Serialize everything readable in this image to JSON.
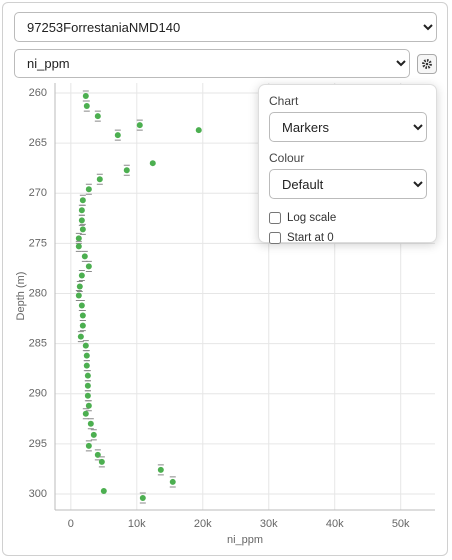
{
  "ui": {
    "well_select": "97253ForrestaniaNMD140",
    "column_select": "ni_ppm",
    "popup": {
      "chart_label": "Chart",
      "chart_value": "Markers",
      "colour_label": "Colour",
      "colour_value": "Default",
      "log_scale_label": "Log scale",
      "start_at_0_label": "Start at 0"
    }
  },
  "chart_data": {
    "type": "scatter",
    "x_label": "ni_ppm",
    "y_label": "Depth (m)",
    "x": [
      2270,
      2420,
      4090,
      10450,
      19390,
      7120,
      12420,
      8480,
      4390,
      2730,
      1820,
      1670,
      1670,
      1820,
      1210,
      1210,
      2120,
      2730,
      1670,
      1360,
      1210,
      1670,
      1820,
      1820,
      1520,
      2270,
      2420,
      2420,
      2580,
      2580,
      2580,
      2730,
      2270,
      3030,
      3480,
      2730,
      4090,
      4700,
      13640,
      15450,
      5000,
      10910
    ],
    "values": [
      260.3,
      261.3,
      262.3,
      263.2,
      263.7,
      264.2,
      267.0,
      267.7,
      268.6,
      269.6,
      270.7,
      271.7,
      272.7,
      273.6,
      274.5,
      275.3,
      276.3,
      277.3,
      278.2,
      279.3,
      280.2,
      281.2,
      282.2,
      283.2,
      284.3,
      285.2,
      286.2,
      287.2,
      288.2,
      289.2,
      290.2,
      291.2,
      292.0,
      293.0,
      294.1,
      295.2,
      296.1,
      296.8,
      297.6,
      298.8,
      299.7,
      300.4
    ],
    "y_errors": [
      0.5,
      0.5,
      0.5,
      0.5,
      null,
      0.5,
      null,
      0.5,
      0.5,
      0.5,
      0.5,
      0.5,
      0.5,
      0.5,
      0.5,
      0.5,
      0.5,
      0.5,
      0.5,
      0.5,
      0.5,
      0.5,
      0.5,
      0.5,
      0.5,
      0.5,
      0.5,
      0.5,
      0.5,
      0.5,
      0.5,
      0.5,
      0.5,
      0.5,
      0.5,
      0.5,
      0.5,
      0.5,
      0.5,
      0.5,
      null,
      0.5
    ],
    "color": "#4caf50",
    "xlim": [
      -2400,
      55200
    ],
    "ylim": [
      259,
      301.6
    ],
    "y_inverted": true,
    "xticks": [
      0,
      {
        "value": 10000,
        "label": "10k"
      },
      {
        "value": 20000,
        "label": "20k"
      },
      {
        "value": 30000,
        "label": "30k"
      },
      {
        "value": 40000,
        "label": "40k"
      },
      {
        "value": 50000,
        "label": "50k"
      }
    ],
    "yticks": [
      260,
      265,
      270,
      275,
      280,
      285,
      290,
      295,
      300
    ],
    "grid": true,
    "log_scale": false,
    "start_at_0": false
  }
}
